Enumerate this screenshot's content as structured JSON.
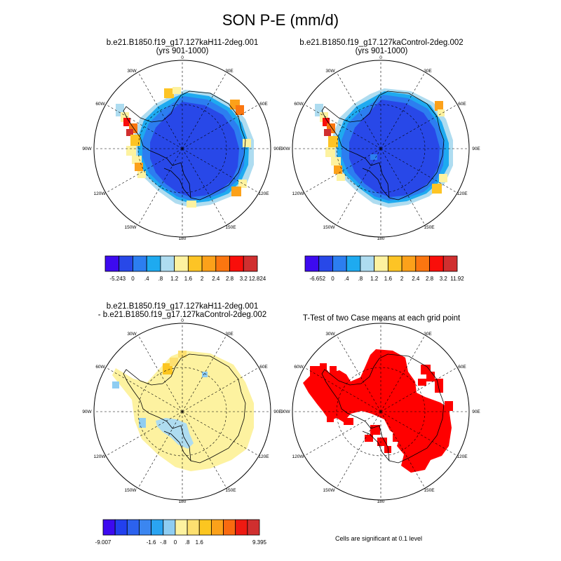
{
  "figure": {
    "title": "SON P-E (mm/d)",
    "footnote": "Cells are significant at 0.1 level"
  },
  "lon_labels": [
    "0",
    "30E",
    "60E",
    "90E",
    "120E",
    "150E",
    "180",
    "150W",
    "120W",
    "90W",
    "60W",
    "30W"
  ],
  "panels": [
    {
      "id": "case1",
      "title_lines": [
        "b.e21.B1850.f19_g17.127kaH11-2deg.001",
        "(yrs 901-1000)"
      ],
      "type": "field"
    },
    {
      "id": "case2",
      "title_lines": [
        "b.e21.B1850.f19_g17.127kaControl-2deg.002",
        "(yrs 901-1000)"
      ],
      "type": "field"
    },
    {
      "id": "diff",
      "title_lines": [
        "b.e21.B1850.f19_g17.127kaH11-2deg.001",
        "- b.e21.B1850.f19_g17.127kaControl-2deg.002"
      ],
      "type": "diff"
    },
    {
      "id": "ttest",
      "title_lines": [
        "T-Test of two Case means at each grid point"
      ],
      "type": "significance"
    }
  ],
  "colorbars": [
    {
      "id": "cb1",
      "colors": [
        "#3d0af0",
        "#2848e8",
        "#2c7ef0",
        "#1eaaf0",
        "#aedcf0",
        "#fdf2a0",
        "#fdc425",
        "#fca11a",
        "#fb7610",
        "#f90e0a",
        "#d02f2f"
      ],
      "labels": [
        "-5.243",
        "0",
        ".4",
        ".8",
        "1.2",
        "1.6",
        "2",
        "2.4",
        "2.8",
        "3.2",
        "12.824"
      ]
    },
    {
      "id": "cb2",
      "colors": [
        "#3d0af0",
        "#2848e8",
        "#2c7ef0",
        "#1eaaf0",
        "#aedcf0",
        "#fdf2a0",
        "#fdc425",
        "#fca11a",
        "#fb7610",
        "#f90e0a",
        "#d02f2f"
      ],
      "labels": [
        "-6.652",
        "0",
        ".4",
        ".8",
        "1.2",
        "1.6",
        "2",
        "2.4",
        "2.8",
        "3.2",
        "11.92"
      ]
    },
    {
      "id": "cb3",
      "colors": [
        "#3d0af0",
        "#2240ee",
        "#2c62ee",
        "#3b86f0",
        "#2aa4f2",
        "#8fcdf2",
        "#fdf2a0",
        "#fde070",
        "#fcc620",
        "#fba11a",
        "#f96a10",
        "#ee1a12",
        "#d02f2f"
      ],
      "labels": [
        "-9.007",
        "-1.6",
        "-.8",
        "0",
        ".8",
        "1.6",
        "9.395"
      ]
    }
  ],
  "legend_colors": {
    "very_dry": "#2848e8",
    "significant": "#ff0000",
    "diff_base": "#fdf2a0"
  }
}
